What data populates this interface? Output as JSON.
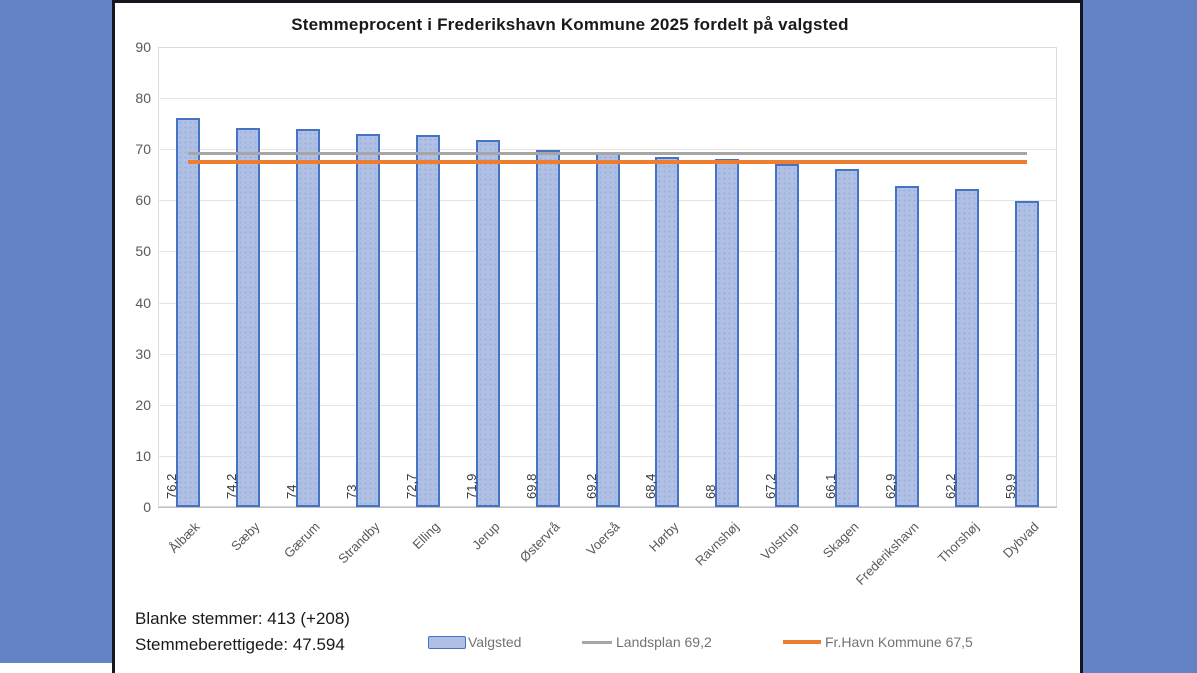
{
  "background_color": "#6482C6",
  "panel_border_color": "#16161e",
  "chart_data": {
    "type": "bar",
    "title": "Stemmeprocent i Frederikshavn Kommune 2025 fordelt på valgsted",
    "categories": [
      "Ålbæk",
      "Sæby",
      "Gærum",
      "Strandby",
      "Elling",
      "Jerup",
      "Østervrå",
      "Voerså",
      "Hørby",
      "Ravnshøj",
      "Volstrup",
      "Skagen",
      "Frederikshavn",
      "Thorshøj",
      "Dybvad"
    ],
    "values": [
      76.2,
      74.2,
      74,
      73,
      72.7,
      71.9,
      69.8,
      69.2,
      68.4,
      68,
      67.2,
      66.1,
      62.9,
      62.2,
      59.9
    ],
    "value_labels": [
      "76,2",
      "74,2",
      "74",
      "73",
      "72,7",
      "71,9",
      "69,8",
      "69,2",
      "68,4",
      "68",
      "67,2",
      "66,1",
      "62,9",
      "62,2",
      "59,9"
    ],
    "xlabel": "",
    "ylabel": "",
    "ylim": [
      0,
      90
    ],
    "ytick_interval": 10,
    "grid": true,
    "bar_color": "#AFC0E4",
    "bar_border_color": "#4472C4",
    "reference_lines": [
      {
        "name": "Landsplan",
        "display": "Landsplan 69,2",
        "value": 69.2,
        "color": "#A6A6A6",
        "thickness": 3
      },
      {
        "name": "Fr.Havn Kommune",
        "display": "Fr.Havn Kommune 67,5",
        "value": 67.5,
        "color": "#ED7D31",
        "thickness": 4
      }
    ],
    "legend_position": "bottom",
    "legend": [
      {
        "label": "Valgsted",
        "type": "bar-swatch",
        "color": "#AFC0E4"
      },
      {
        "label": "Landsplan 69,2",
        "type": "line",
        "color": "#A6A6A6"
      },
      {
        "label": "Fr.Havn Kommune 67,5",
        "type": "line",
        "color": "#ED7D31"
      }
    ]
  },
  "footer": {
    "line1": "Blanke stemmer: 413 (+208)",
    "line2": "Stemmeberettigede: 47.594"
  }
}
